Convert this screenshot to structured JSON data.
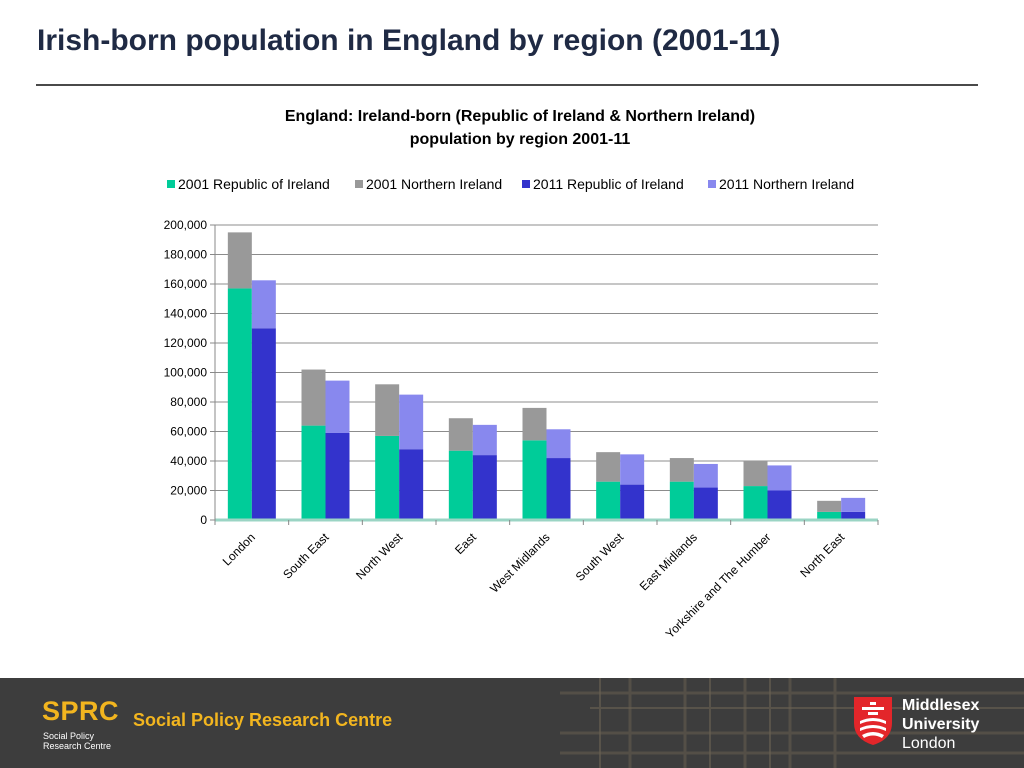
{
  "slide": {
    "title": "Irish-born population in England by region (2001-11)"
  },
  "chart_data": {
    "type": "bar",
    "stacked": true,
    "title": "England: Ireland-born (Republic of Ireland & Northern Ireland)",
    "subtitle": "population by region 2001-11",
    "legend_position": "top",
    "grid": true,
    "ylim": [
      0,
      200000
    ],
    "yticks": [
      0,
      20000,
      40000,
      60000,
      80000,
      100000,
      120000,
      140000,
      160000,
      180000,
      200000
    ],
    "ytick_labels": [
      "0",
      "20,000",
      "40,000",
      "60,000",
      "80,000",
      "100,000",
      "120,000",
      "140,000",
      "160,000",
      "180,000",
      "200,000"
    ],
    "categories": [
      "London",
      "South East",
      "North West",
      "East",
      "West Midlands",
      "South West",
      "East Midlands",
      "Yorkshire and The Humber",
      "North East"
    ],
    "series": [
      {
        "name": "2001 Republic of Ireland",
        "color": "#00cc99",
        "stack": "2001",
        "values": [
          157000,
          64000,
          57000,
          47000,
          54000,
          26000,
          26000,
          23000,
          5500
        ]
      },
      {
        "name": "2001 Northern Ireland",
        "color": "#999999",
        "stack": "2001",
        "values": [
          38000,
          38000,
          35000,
          22000,
          22000,
          20000,
          16000,
          17000,
          7500
        ]
      },
      {
        "name": "2011 Republic of Ireland",
        "color": "#3333cc",
        "stack": "2011",
        "values": [
          130000,
          59000,
          48000,
          44000,
          42000,
          24000,
          22000,
          20000,
          5500
        ]
      },
      {
        "name": "2011 Northern Ireland",
        "color": "#8888ee",
        "stack": "2011",
        "values": [
          32500,
          35500,
          37000,
          20500,
          19500,
          20500,
          16000,
          17000,
          9500
        ]
      }
    ]
  },
  "footer": {
    "sprc_logo": "SPRC",
    "sprc_sub1": "Social Policy",
    "sprc_sub2": "Research Centre",
    "sprc_name": "Social Policy Research Centre",
    "uni_line1": "Middlesex",
    "uni_line2": "University",
    "uni_line3": "London",
    "bg_color": "#3d3d3d",
    "accent_color": "#f2b51f",
    "shield_color": "#e3262a"
  }
}
